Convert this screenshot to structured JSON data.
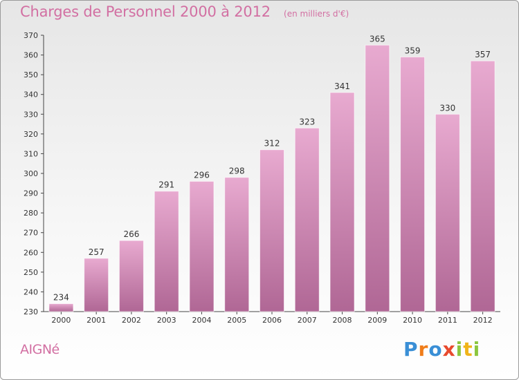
{
  "chart_data": {
    "type": "bar",
    "title": "Charges de Personnel 2000 à 2012",
    "subtitle": "(en milliers d'€)",
    "categories": [
      "2000",
      "2001",
      "2002",
      "2003",
      "2004",
      "2005",
      "2006",
      "2007",
      "2008",
      "2009",
      "2010",
      "2011",
      "2012"
    ],
    "values": [
      234,
      257,
      266,
      291,
      296,
      298,
      312,
      323,
      341,
      365,
      359,
      330,
      357
    ],
    "ylim": [
      230,
      370
    ],
    "yticks": [
      230,
      240,
      250,
      260,
      270,
      280,
      290,
      300,
      310,
      320,
      330,
      340,
      350,
      360,
      370
    ],
    "grid": false,
    "bar_color": "#c37ba8",
    "bar_color_light": "#e8aad0",
    "bar_color_dark": "#b06795"
  },
  "footer": {
    "commune": "AIGNé",
    "brand": {
      "letters": [
        "P",
        "r",
        "o",
        "x",
        "i",
        "t",
        "i"
      ],
      "colors": [
        "#3a8fd6",
        "#f07d1a",
        "#3a8fd6",
        "#e84a2e",
        "#8cc63f",
        "#f0b41a",
        "#8cc63f"
      ]
    }
  },
  "colors": {
    "title": "#d26fa2",
    "axis": "#444444"
  }
}
